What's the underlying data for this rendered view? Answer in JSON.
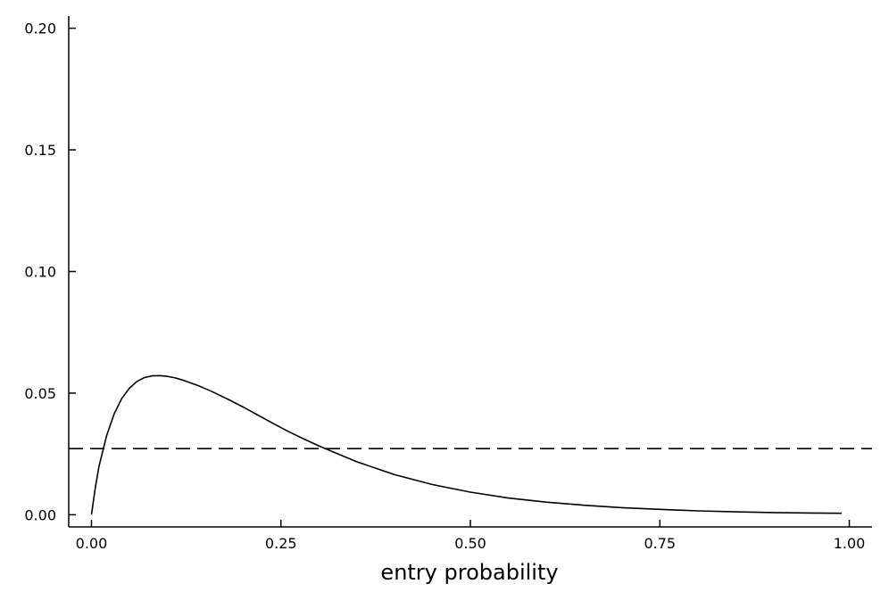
{
  "chart_data": {
    "type": "line",
    "title": "",
    "xlabel": "entry probability",
    "ylabel": "",
    "xlim": [
      -0.03,
      1.03
    ],
    "ylim": [
      -0.005,
      0.205
    ],
    "xticks": [
      0.0,
      0.25,
      0.5,
      0.75,
      1.0
    ],
    "xtick_labels": [
      "0.00",
      "0.25",
      "0.50",
      "0.75",
      "1.00"
    ],
    "yticks": [
      0.0,
      0.05,
      0.1,
      0.15,
      0.2
    ],
    "ytick_labels": [
      "0.00",
      "0.05",
      "0.10",
      "0.15",
      "0.20"
    ],
    "grid": false,
    "legend": "none",
    "series": [
      {
        "style": "solid",
        "color": "#000000",
        "x": [
          0.0,
          0.005,
          0.01,
          0.02,
          0.03,
          0.04,
          0.05,
          0.06,
          0.07,
          0.08,
          0.09,
          0.1,
          0.11,
          0.12,
          0.14,
          0.16,
          0.18,
          0.2,
          0.22,
          0.24,
          0.26,
          0.28,
          0.3,
          0.32,
          0.35,
          0.4,
          0.45,
          0.5,
          0.55,
          0.6,
          0.65,
          0.7,
          0.75,
          0.8,
          0.85,
          0.9,
          0.95,
          0.99
        ],
        "y": [
          0.0,
          0.011,
          0.02,
          0.0325,
          0.0415,
          0.0478,
          0.052,
          0.0548,
          0.0564,
          0.0571,
          0.0572,
          0.0569,
          0.0563,
          0.0554,
          0.0532,
          0.0505,
          0.0475,
          0.0443,
          0.0409,
          0.0375,
          0.0342,
          0.0312,
          0.0283,
          0.0257,
          0.0218,
          0.0165,
          0.0124,
          0.0093,
          0.0069,
          0.0052,
          0.0039,
          0.0029,
          0.0022,
          0.0016,
          0.0012,
          0.0009,
          0.0007,
          0.0006
        ]
      },
      {
        "style": "dashed",
        "color": "#000000",
        "x": [
          -0.03,
          1.03
        ],
        "y": [
          0.0272,
          0.0272
        ]
      }
    ]
  }
}
